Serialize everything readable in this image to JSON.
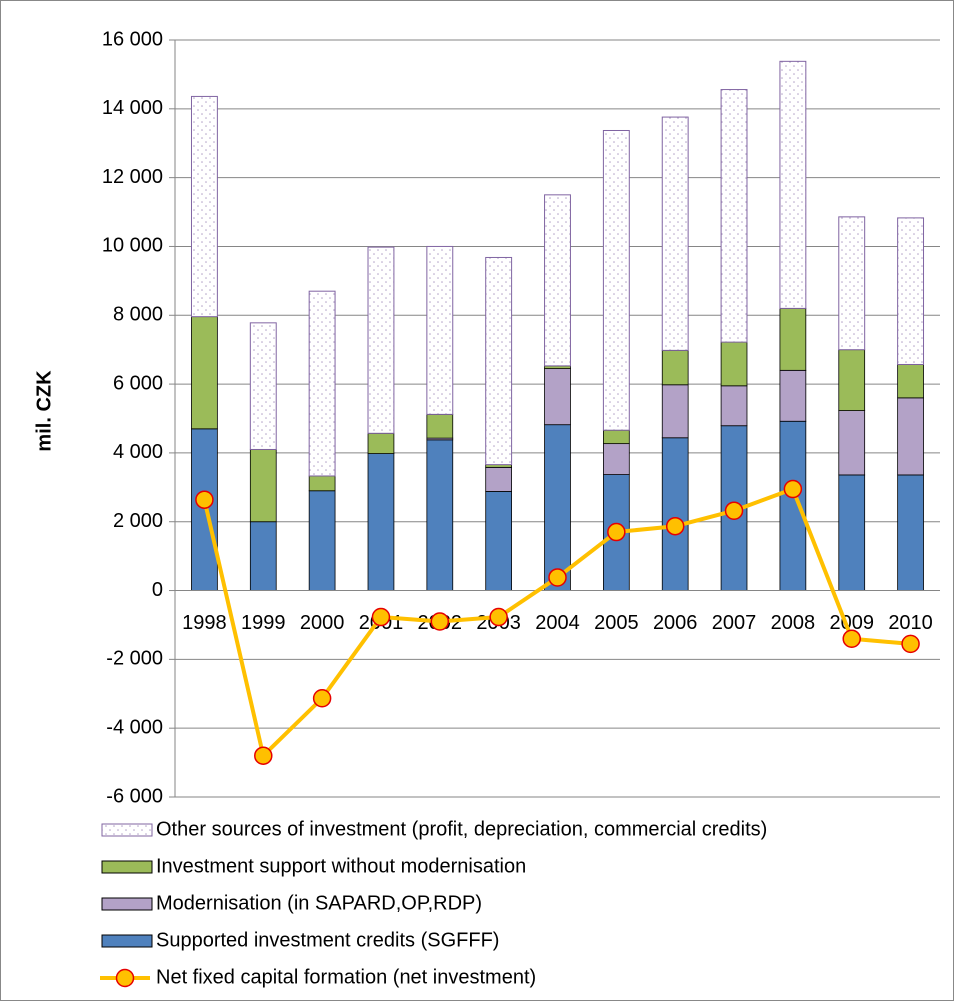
{
  "chart_data": {
    "type": "bar",
    "stacked": true,
    "y_label": "mil. CZK",
    "categories": [
      "1998",
      "1999",
      "2000",
      "2001",
      "2002",
      "2003",
      "2004",
      "2005",
      "2006",
      "2007",
      "2008",
      "2009",
      "2010"
    ],
    "series": [
      {
        "name": "Supported investment credits (SGFFF)",
        "color": "#4f81bd",
        "values": [
          4700,
          2000,
          2900,
          3980,
          4380,
          2880,
          4820,
          3370,
          4440,
          4790,
          4920,
          3360,
          3360
        ]
      },
      {
        "name": "Modernisation (in SAPARD,OP,RDP)",
        "color": "#b3a2c7",
        "values": [
          0,
          0,
          0,
          0,
          50,
          700,
          1630,
          900,
          1540,
          1160,
          1480,
          1870,
          2240
        ]
      },
      {
        "name": "Investment support without modernisation",
        "color": "#9bbb59",
        "values": [
          3260,
          2100,
          430,
          590,
          690,
          80,
          80,
          390,
          1000,
          1270,
          1800,
          1770,
          970
        ]
      },
      {
        "name": "Other sources of investment (profit, depreciation, commercial credits)",
        "color": "#ffffff",
        "pattern": "dots",
        "values": [
          6400,
          3680,
          5370,
          5410,
          4880,
          6020,
          4970,
          8710,
          6780,
          7340,
          7180,
          3860,
          4260
        ]
      },
      {
        "name": "Net fixed capital formation (net investment)",
        "type": "line",
        "color": "#ffc000",
        "marker_edge": "#e60000",
        "values": [
          2640,
          -4800,
          -3130,
          -770,
          -900,
          -770,
          380,
          1700,
          1870,
          2320,
          2950,
          -1400,
          -1550
        ]
      }
    ],
    "ylim": [
      -6000,
      16000
    ],
    "yticks": [
      {
        "value": -6000,
        "label": "-6 000"
      },
      {
        "value": -4000,
        "label": "-4 000"
      },
      {
        "value": -2000,
        "label": "-2 000"
      },
      0,
      {
        "value": 2000,
        "label": "2 000"
      },
      {
        "value": 4000,
        "label": "4 000"
      },
      {
        "value": 6000,
        "label": "6 000"
      },
      {
        "value": 8000,
        "label": "8 000"
      },
      {
        "value": 10000,
        "label": "10 000"
      },
      {
        "value": 12000,
        "label": "12 000"
      },
      {
        "value": 14000,
        "label": "14 000"
      },
      {
        "value": 16000,
        "label": "16 000"
      }
    ],
    "grid": true,
    "legend": "bottom"
  }
}
